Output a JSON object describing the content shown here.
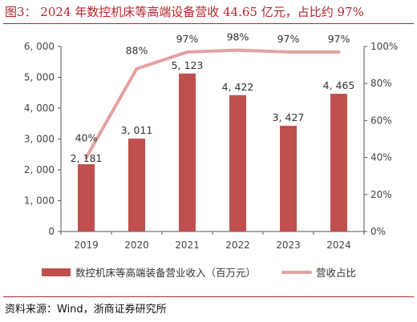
{
  "title": "图3：  2024 年数控机床等高端设备营收 44.65 亿元，占比约 97%",
  "source": "资料来源：Wind，浙商证券研究所",
  "colors": {
    "bar": "#c0504d",
    "line": "#e3a1a1",
    "title": "#b3262c"
  },
  "chart_data": {
    "type": "bar",
    "categories": [
      "2019",
      "2020",
      "2021",
      "2022",
      "2023",
      "2024"
    ],
    "series": [
      {
        "name": "数控机床等高端装备营业收入（百万元）",
        "type": "bar",
        "axis": "left",
        "values": [
          2181,
          3011,
          5123,
          4422,
          3427,
          4465
        ],
        "labels": [
          "2, 181",
          "3, 011",
          "5, 123",
          "4, 422",
          "3, 427",
          "4, 465"
        ]
      },
      {
        "name": "营收占比",
        "type": "line",
        "axis": "right",
        "values": [
          40,
          88,
          97,
          98,
          97,
          97
        ],
        "labels": [
          "40%",
          "88%",
          "97%",
          "98%",
          "97%",
          "97%"
        ]
      }
    ],
    "y_left": {
      "min": 0,
      "max": 6000,
      "ticks": [
        0,
        1000,
        2000,
        3000,
        4000,
        5000,
        6000
      ],
      "tick_labels": [
        "0",
        "1, 000",
        "2, 000",
        "3, 000",
        "4, 000",
        "5, 000",
        "6, 000"
      ]
    },
    "y_right": {
      "min": 0,
      "max": 100,
      "ticks": [
        0,
        20,
        40,
        60,
        80,
        100
      ],
      "tick_labels": [
        "0%",
        "20%",
        "40%",
        "60%",
        "80%",
        "100%"
      ]
    },
    "grid": false,
    "legend_position": "bottom"
  }
}
